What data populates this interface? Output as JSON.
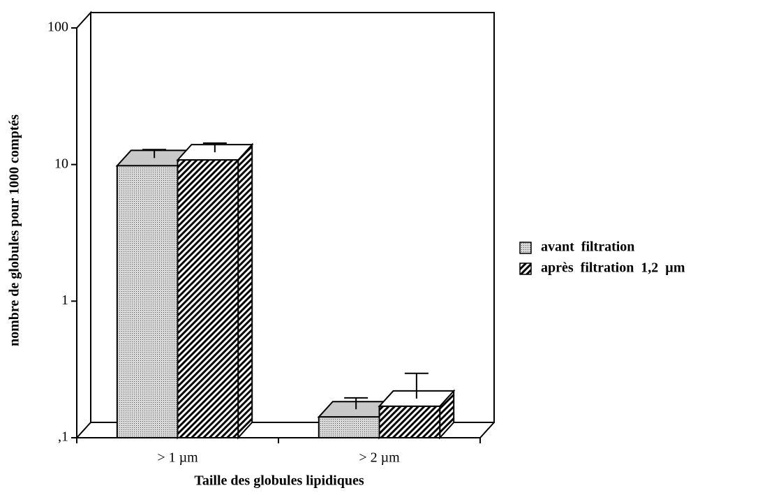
{
  "chart_data": {
    "type": "bar3d",
    "x_label": "Taille des globules lipidiques",
    "y_label": "nombre de globules pour 1000 comptés",
    "categories": [
      "> 1 µm",
      "> 2 µm"
    ],
    "series": [
      {
        "name": "avant  filtration",
        "color": "#c8c8c8",
        "pattern": "dots",
        "values": [
          9.8,
          0.142
        ],
        "errors": [
          1.5,
          0.03
        ]
      },
      {
        "name": "après  filtration  1,2  µm",
        "color": "#ffffff",
        "pattern": "hatch",
        "values": [
          10.8,
          0.17
        ],
        "errors": [
          1.8,
          0.09
        ]
      }
    ],
    "log": true,
    "ylim": [
      0.1,
      100
    ],
    "yticks": [
      {
        "value": 0.1,
        "label": ",1"
      },
      1,
      10,
      100
    ],
    "legend": "right"
  }
}
